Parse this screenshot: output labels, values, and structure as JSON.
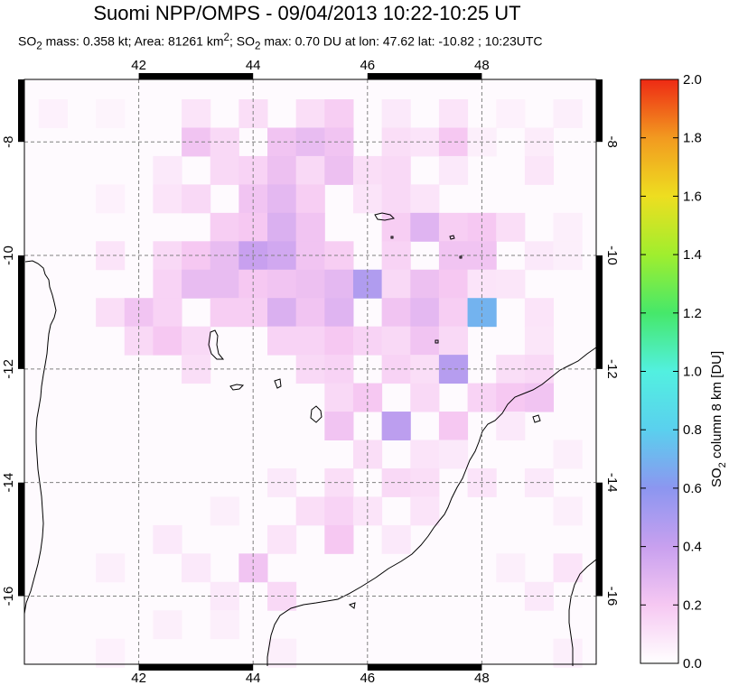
{
  "title": "Suomi NPP/OMPS - 09/04/2013 10:22-10:25 UT",
  "subtitle": {
    "text_1": "SO",
    "sub_1": "2",
    "text_2": " mass: 0.358 kt; Area: 81261 km",
    "sup_1": "2",
    "text_3": "; SO",
    "sub_2": "2",
    "text_4": " max: 0.70 DU at lon: 47.62 lat: -10.82 ; 10:23UTC"
  },
  "map": {
    "x_ticks": [
      "42",
      "44",
      "46",
      "48"
    ],
    "y_ticks": [
      "-8",
      "-10",
      "-12",
      "-14",
      "-16"
    ],
    "lon_range": [
      40,
      50
    ],
    "lat_range": [
      -17.2,
      -6.9
    ],
    "colors": {
      "frame": "#000000",
      "grid": "#808080",
      "coast": "#000000",
      "background": "#fefafe"
    }
  },
  "colorbar": {
    "ticks": [
      "0.0",
      "0.2",
      "0.4",
      "0.6",
      "0.8",
      "1.0",
      "1.2",
      "1.4",
      "1.6",
      "1.8",
      "2.0"
    ],
    "title_prefix": "SO",
    "title_sub": "2",
    "title_suffix": " column 8 km [DU]",
    "colors": [
      "#ffffff",
      "#f6c8f2",
      "#c8a0ef",
      "#8c96f0",
      "#5ad0ee",
      "#52f0e0",
      "#46e86a",
      "#a0ee2e",
      "#eede20",
      "#f29a20",
      "#ee2a14"
    ]
  },
  "cells": [
    [
      40.5,
      -7.5,
      0.05
    ],
    [
      41.5,
      -7.5,
      0.04
    ],
    [
      43.0,
      -7.5,
      0.1
    ],
    [
      44.0,
      -7.5,
      0.12
    ],
    [
      45.0,
      -7.5,
      0.12
    ],
    [
      45.5,
      -7.5,
      0.18
    ],
    [
      46.5,
      -7.5,
      0.08
    ],
    [
      47.5,
      -7.5,
      0.1
    ],
    [
      48.5,
      -7.5,
      0.05
    ],
    [
      49.5,
      -7.5,
      0.06
    ],
    [
      43.0,
      -8.0,
      0.22
    ],
    [
      43.5,
      -8.0,
      0.14
    ],
    [
      44.5,
      -8.0,
      0.22
    ],
    [
      45.0,
      -8.0,
      0.26
    ],
    [
      45.5,
      -8.0,
      0.22
    ],
    [
      46.5,
      -8.0,
      0.12
    ],
    [
      47.0,
      -8.0,
      0.1
    ],
    [
      47.5,
      -8.0,
      0.2
    ],
    [
      48.0,
      -8.0,
      0.06
    ],
    [
      49.0,
      -8.0,
      0.07
    ],
    [
      42.5,
      -8.5,
      0.08
    ],
    [
      43.5,
      -8.5,
      0.14
    ],
    [
      44.0,
      -8.5,
      0.16
    ],
    [
      44.5,
      -8.5,
      0.24
    ],
    [
      45.0,
      -8.5,
      0.14
    ],
    [
      45.5,
      -8.5,
      0.24
    ],
    [
      46.0,
      -8.5,
      0.12
    ],
    [
      46.5,
      -8.5,
      0.14
    ],
    [
      47.5,
      -8.5,
      0.08
    ],
    [
      49.0,
      -8.5,
      0.09
    ],
    [
      41.5,
      -9.0,
      0.05
    ],
    [
      42.5,
      -9.0,
      0.1
    ],
    [
      43.0,
      -9.0,
      0.14
    ],
    [
      44.0,
      -9.0,
      0.22
    ],
    [
      44.5,
      -9.0,
      0.28
    ],
    [
      45.0,
      -9.0,
      0.18
    ],
    [
      46.0,
      -9.0,
      0.1
    ],
    [
      46.5,
      -9.0,
      0.14
    ],
    [
      47.0,
      -9.0,
      0.1
    ],
    [
      43.5,
      -9.5,
      0.18
    ],
    [
      44.0,
      -9.5,
      0.2
    ],
    [
      44.5,
      -9.5,
      0.32
    ],
    [
      45.0,
      -9.5,
      0.22
    ],
    [
      46.5,
      -9.5,
      0.18
    ],
    [
      47.0,
      -9.5,
      0.3
    ],
    [
      47.5,
      -9.5,
      0.18
    ],
    [
      48.0,
      -9.5,
      0.2
    ],
    [
      48.5,
      -9.5,
      0.12
    ],
    [
      49.5,
      -9.5,
      0.06
    ],
    [
      41.5,
      -10.0,
      0.1
    ],
    [
      42.5,
      -10.0,
      0.14
    ],
    [
      43.0,
      -10.0,
      0.2
    ],
    [
      43.5,
      -10.0,
      0.26
    ],
    [
      44.0,
      -10.0,
      0.4
    ],
    [
      44.5,
      -10.0,
      0.36
    ],
    [
      45.0,
      -10.0,
      0.22
    ],
    [
      45.5,
      -10.0,
      0.18
    ],
    [
      46.5,
      -10.0,
      0.16
    ],
    [
      47.5,
      -10.0,
      0.22
    ],
    [
      48.0,
      -10.0,
      0.22
    ],
    [
      49.0,
      -10.0,
      0.08
    ],
    [
      49.5,
      -10.0,
      0.06
    ],
    [
      42.5,
      -10.5,
      0.16
    ],
    [
      43.0,
      -10.5,
      0.26
    ],
    [
      43.5,
      -10.5,
      0.26
    ],
    [
      44.0,
      -10.5,
      0.2
    ],
    [
      44.5,
      -10.5,
      0.22
    ],
    [
      45.0,
      -10.5,
      0.24
    ],
    [
      45.5,
      -10.5,
      0.28
    ],
    [
      46.0,
      -10.5,
      0.48
    ],
    [
      46.5,
      -10.5,
      0.14
    ],
    [
      47.0,
      -10.5,
      0.24
    ],
    [
      47.5,
      -10.5,
      0.2
    ],
    [
      48.0,
      -10.5,
      0.1
    ],
    [
      48.5,
      -10.5,
      0.09
    ],
    [
      41.5,
      -11.0,
      0.12
    ],
    [
      42.0,
      -11.0,
      0.22
    ],
    [
      42.5,
      -11.0,
      0.16
    ],
    [
      43.5,
      -11.0,
      0.18
    ],
    [
      44.0,
      -11.0,
      0.18
    ],
    [
      44.5,
      -11.0,
      0.32
    ],
    [
      45.0,
      -11.0,
      0.22
    ],
    [
      45.5,
      -11.0,
      0.3
    ],
    [
      46.5,
      -11.0,
      0.22
    ],
    [
      47.0,
      -11.0,
      0.28
    ],
    [
      47.5,
      -11.0,
      0.18
    ],
    [
      48.0,
      -11.0,
      0.7
    ],
    [
      49.0,
      -11.0,
      0.1
    ],
    [
      42.0,
      -11.5,
      0.14
    ],
    [
      42.5,
      -11.5,
      0.2
    ],
    [
      43.0,
      -11.5,
      0.14
    ],
    [
      44.5,
      -11.5,
      0.16
    ],
    [
      45.0,
      -11.5,
      0.16
    ],
    [
      45.5,
      -11.5,
      0.2
    ],
    [
      46.0,
      -11.5,
      0.16
    ],
    [
      46.5,
      -11.5,
      0.14
    ],
    [
      47.0,
      -11.5,
      0.22
    ],
    [
      47.5,
      -11.5,
      0.14
    ],
    [
      49.0,
      -11.5,
      0.09
    ],
    [
      43.0,
      -12.0,
      0.12
    ],
    [
      45.0,
      -12.0,
      0.14
    ],
    [
      45.5,
      -12.0,
      0.16
    ],
    [
      46.5,
      -12.0,
      0.16
    ],
    [
      47.0,
      -12.0,
      0.12
    ],
    [
      47.5,
      -12.0,
      0.46
    ],
    [
      48.5,
      -12.0,
      0.12
    ],
    [
      49.0,
      -12.0,
      0.14
    ],
    [
      45.5,
      -12.5,
      0.14
    ],
    [
      46.0,
      -12.5,
      0.2
    ],
    [
      47.0,
      -12.5,
      0.14
    ],
    [
      48.0,
      -12.5,
      0.16
    ],
    [
      48.5,
      -12.5,
      0.2
    ],
    [
      49.0,
      -12.5,
      0.22
    ],
    [
      45.5,
      -13.0,
      0.22
    ],
    [
      46.5,
      -13.0,
      0.44
    ],
    [
      47.5,
      -13.0,
      0.2
    ],
    [
      48.5,
      -13.0,
      0.08
    ],
    [
      46.0,
      -13.5,
      0.12
    ],
    [
      47.0,
      -13.5,
      0.1
    ],
    [
      47.5,
      -13.5,
      0.08
    ],
    [
      49.5,
      -13.5,
      0.06
    ],
    [
      44.5,
      -14.0,
      0.08
    ],
    [
      45.5,
      -14.0,
      0.12
    ],
    [
      46.5,
      -14.0,
      0.14
    ],
    [
      47.0,
      -14.0,
      0.12
    ],
    [
      48.0,
      -14.0,
      0.1
    ],
    [
      49.0,
      -14.0,
      0.08
    ],
    [
      43.5,
      -14.5,
      0.06
    ],
    [
      45.0,
      -14.5,
      0.12
    ],
    [
      45.5,
      -14.5,
      0.16
    ],
    [
      46.0,
      -14.5,
      0.1
    ],
    [
      47.0,
      -14.5,
      0.1
    ],
    [
      49.5,
      -14.5,
      0.06
    ],
    [
      42.5,
      -15.0,
      0.08
    ],
    [
      44.5,
      -15.0,
      0.1
    ],
    [
      45.5,
      -15.0,
      0.2
    ],
    [
      46.5,
      -15.0,
      0.08
    ],
    [
      41.5,
      -15.5,
      0.06
    ],
    [
      43.0,
      -15.5,
      0.08
    ],
    [
      44.0,
      -15.5,
      0.22
    ],
    [
      48.5,
      -15.5,
      0.06
    ],
    [
      49.5,
      -15.5,
      0.1
    ],
    [
      44.5,
      -16.0,
      0.14
    ],
    [
      43.5,
      -16.0,
      0.08
    ],
    [
      49.0,
      -16.0,
      0.08
    ],
    [
      42.5,
      -16.5,
      0.06
    ],
    [
      43.5,
      -16.5,
      0.06
    ],
    [
      41.5,
      -17.0,
      0.05
    ],
    [
      44.5,
      -17.0,
      0.06
    ],
    [
      49.5,
      -17.0,
      0.06
    ]
  ]
}
